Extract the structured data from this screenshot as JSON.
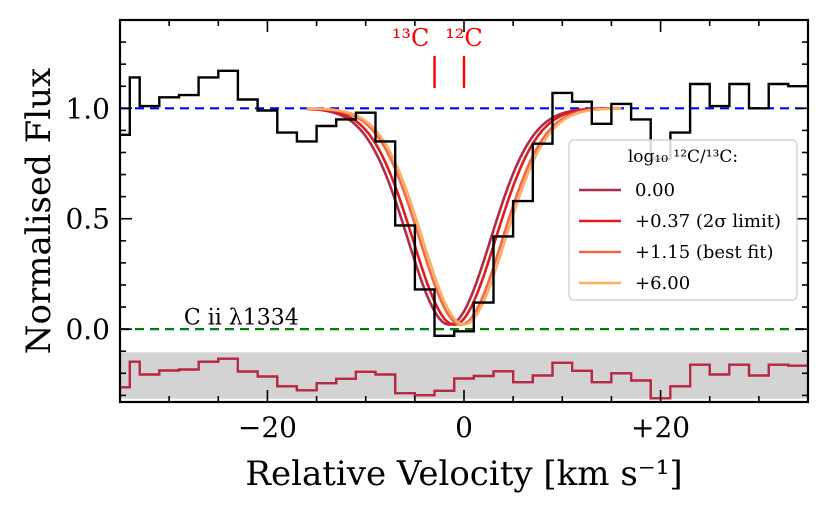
{
  "chart_data": {
    "type": "line",
    "xlabel": "Relative Velocity [km s⁻¹]",
    "ylabel": "Normalised Flux",
    "xlim": [
      -35,
      35
    ],
    "ylim": [
      -0.33,
      1.4
    ],
    "x_ticks": [
      {
        "value": -20,
        "label": "−20"
      },
      {
        "value": 0,
        "label": "0"
      },
      {
        "value": 20,
        "label": "+20"
      }
    ],
    "y_ticks": [
      {
        "value": 1.0,
        "label": "1.0"
      },
      {
        "value": 0.5,
        "label": "0.5"
      },
      {
        "value": 0.0,
        "label": "0.0"
      }
    ],
    "reference_lines": {
      "continuum": {
        "y": 1.0,
        "color": "#0000ff"
      },
      "zero": {
        "y": 0.0,
        "color": "#008000"
      }
    },
    "line_label": "C ii λ1334",
    "markers": [
      {
        "label": "¹³C",
        "x": -3.0,
        "color": "#ff0000"
      },
      {
        "label": "¹²C",
        "x": 0.0,
        "color": "#ff0000"
      }
    ],
    "residual_band": {
      "y_center": -0.21,
      "half_width": 0.105,
      "color": "#d3d3d3"
    },
    "residual_offset": -0.21,
    "residual_scale": 0.9,
    "data": {
      "name": "observed",
      "color": "#000000",
      "bin_edges": [
        -35,
        -34,
        -33,
        -31,
        -29,
        -27,
        -25,
        -23,
        -21,
        -19,
        -17,
        -15,
        -13,
        -11,
        -9,
        -7,
        -5,
        -3,
        -1,
        1,
        3,
        5,
        7,
        9,
        11,
        13,
        15,
        17,
        19,
        21,
        23,
        25,
        27,
        29,
        31,
        33,
        35
      ],
      "flux": [
        0.88,
        1.14,
        1.01,
        1.05,
        1.06,
        1.14,
        1.17,
        1.04,
        0.99,
        0.89,
        0.85,
        0.92,
        0.95,
        0.98,
        0.85,
        0.47,
        0.18,
        -0.03,
        -0.01,
        0.12,
        0.42,
        0.58,
        0.84,
        1.07,
        1.03,
        0.93,
        1.02,
        0.95,
        0.77,
        0.89,
        1.11,
        1.01,
        1.11,
        1.0,
        1.11,
        1.1
      ]
    },
    "legend": {
      "title": "log₁₀ ¹²C/¹³C:",
      "position": "right"
    },
    "series": [
      {
        "name": "0.00",
        "color": "#b22a4a",
        "shift": -1.5
      },
      {
        "name": "+0.37 (2σ limit)",
        "color": "#e31a1c",
        "shift": -1.0
      },
      {
        "name": "+1.15 (best fit)",
        "color": "#f06a4a",
        "shift": -0.3
      },
      {
        "name": "+6.00",
        "color": "#fdae61",
        "shift": 0.0
      }
    ],
    "model_profile": {
      "center": 0.0,
      "depth": 0.98,
      "sigma": 4.2
    },
    "residual_deviations": [
      {
        "x": [
          -11,
          -9,
          -7,
          -5,
          -3
        ],
        "values": [
          [
            0.05,
            0.1,
            0.08,
            0.04,
            0.02
          ],
          [
            0.04,
            0.07,
            0.06,
            0.03,
            0.01
          ],
          [
            0.02,
            0.03,
            0.02,
            0.01,
            0.0
          ],
          [
            0,
            0,
            0,
            0,
            0
          ]
        ]
      },
      {
        "x": [
          3,
          5,
          7
        ],
        "values": [
          [
            -0.06,
            -0.04,
            -0.02
          ],
          [
            -0.05,
            -0.03,
            -0.015
          ],
          [
            -0.02,
            -0.01,
            0.0
          ],
          [
            0,
            0,
            0
          ]
        ]
      }
    ]
  }
}
